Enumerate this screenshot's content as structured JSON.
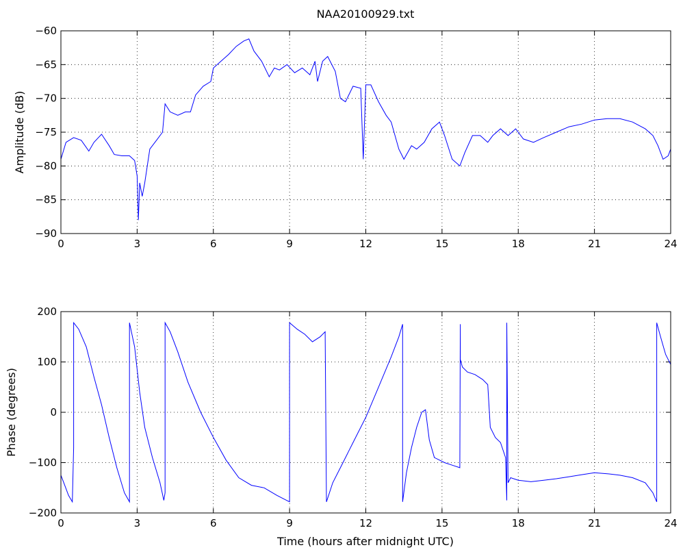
{
  "figure": {
    "title": "NAA20100929.txt",
    "xlabel": "Time (hours after midnight UTC)"
  },
  "chart_data": [
    {
      "type": "line",
      "title": "NAA20100929.txt",
      "xlabel": "",
      "ylabel": "Amplitude (dB)",
      "xlim": [
        0,
        24
      ],
      "ylim": [
        -90,
        -60
      ],
      "xticks": [
        0,
        3,
        6,
        9,
        12,
        15,
        18,
        21,
        24
      ],
      "yticks": [
        -90,
        -85,
        -80,
        -75,
        -70,
        -65,
        -60
      ],
      "grid": true,
      "series_color": "#0000ff",
      "x": [
        0,
        0.2,
        0.5,
        0.8,
        1.1,
        1.3,
        1.6,
        1.9,
        2.1,
        2.4,
        2.7,
        2.9,
        3.0,
        3.05,
        3.1,
        3.2,
        3.3,
        3.5,
        3.8,
        4.0,
        4.1,
        4.3,
        4.6,
        4.9,
        5.1,
        5.3,
        5.6,
        5.9,
        6.0,
        6.3,
        6.6,
        6.9,
        7.2,
        7.4,
        7.6,
        7.9,
        8.2,
        8.4,
        8.6,
        8.9,
        9.2,
        9.5,
        9.8,
        10.0,
        10.1,
        10.3,
        10.5,
        10.8,
        11.0,
        11.2,
        11.5,
        11.8,
        11.9,
        12.0,
        12.2,
        12.5,
        12.8,
        13.0,
        13.3,
        13.5,
        13.8,
        14.0,
        14.3,
        14.6,
        14.9,
        15.1,
        15.4,
        15.7,
        15.9,
        16.2,
        16.5,
        16.8,
        17.0,
        17.3,
        17.6,
        17.9,
        18.2,
        18.6,
        19.0,
        19.5,
        20.0,
        20.5,
        21.0,
        21.5,
        22.0,
        22.5,
        23.0,
        23.3,
        23.5,
        23.7,
        23.9,
        24.0
      ],
      "values": [
        -79,
        -76.5,
        -75.8,
        -76.2,
        -77.8,
        -76.5,
        -75.3,
        -77.0,
        -78.3,
        -78.5,
        -78.5,
        -79.2,
        -81.5,
        -88.0,
        -82.5,
        -84.5,
        -82.5,
        -77.5,
        -76.0,
        -75.0,
        -70.8,
        -72.0,
        -72.5,
        -72.0,
        -72.0,
        -69.5,
        -68.2,
        -67.5,
        -65.5,
        -64.5,
        -63.5,
        -62.3,
        -61.5,
        -61.2,
        -63.0,
        -64.5,
        -66.8,
        -65.5,
        -65.8,
        -65.0,
        -66.2,
        -65.5,
        -66.5,
        -64.5,
        -67.5,
        -64.5,
        -63.8,
        -66.0,
        -70.0,
        -70.5,
        -68.2,
        -68.5,
        -79.0,
        -68.0,
        -68.0,
        -70.5,
        -72.5,
        -73.5,
        -77.5,
        -79.0,
        -77.0,
        -77.5,
        -76.5,
        -74.5,
        -73.5,
        -75.5,
        -79.0,
        -80.0,
        -78.0,
        -75.5,
        -75.5,
        -76.5,
        -75.5,
        -74.5,
        -75.5,
        -74.5,
        -76.0,
        -76.5,
        -75.8,
        -75.0,
        -74.2,
        -73.8,
        -73.2,
        -73.0,
        -73.0,
        -73.5,
        -74.5,
        -75.5,
        -77.0,
        -79.0,
        -78.5,
        -77.5
      ]
    },
    {
      "type": "line",
      "title": "",
      "xlabel": "Time (hours after midnight UTC)",
      "ylabel": "Phase (degrees)",
      "xlim": [
        0,
        24
      ],
      "ylim": [
        -200,
        200
      ],
      "xticks": [
        0,
        3,
        6,
        9,
        12,
        15,
        18,
        21,
        24
      ],
      "yticks": [
        -200,
        -100,
        0,
        100,
        200
      ],
      "grid": true,
      "series_color": "#0000ff",
      "x": [
        0,
        0.15,
        0.3,
        0.45,
        0.5,
        0.5,
        0.7,
        1.0,
        1.3,
        1.6,
        1.9,
        2.2,
        2.5,
        2.7,
        2.7,
        2.9,
        3.1,
        3.3,
        3.6,
        3.9,
        4.05,
        4.1,
        4.1,
        4.3,
        4.6,
        5.0,
        5.5,
        6.0,
        6.5,
        7.0,
        7.5,
        8.0,
        8.5,
        9.0,
        9.0,
        9.3,
        9.6,
        9.9,
        10.2,
        10.4,
        10.45,
        10.45,
        10.7,
        11.0,
        11.5,
        12.0,
        12.5,
        13.0,
        13.3,
        13.45,
        13.45,
        13.6,
        13.8,
        14.0,
        14.2,
        14.35,
        14.5,
        14.7,
        14.9,
        15.1,
        15.4,
        15.7,
        15.72,
        15.72,
        15.8,
        16.0,
        16.3,
        16.6,
        16.8,
        16.9,
        17.1,
        17.3,
        17.5,
        17.55,
        17.55,
        17.6,
        17.7,
        18.0,
        18.5,
        19.0,
        19.5,
        20.0,
        20.5,
        21.0,
        21.5,
        22.0,
        22.5,
        23.0,
        23.3,
        23.45,
        23.45,
        23.6,
        23.8,
        24.0
      ],
      "values": [
        -125,
        -145,
        -165,
        -178,
        -70,
        178,
        165,
        130,
        70,
        15,
        -50,
        -110,
        -160,
        -178,
        178,
        130,
        40,
        -30,
        -90,
        -140,
        -175,
        -160,
        178,
        160,
        120,
        60,
        0,
        -50,
        -95,
        -130,
        -145,
        -150,
        -165,
        -178,
        178,
        165,
        155,
        140,
        150,
        160,
        -178,
        -178,
        -140,
        -110,
        -60,
        -10,
        50,
        110,
        150,
        175,
        -178,
        -120,
        -70,
        -30,
        0,
        5,
        -55,
        -90,
        -95,
        -100,
        -105,
        -110,
        175,
        105,
        90,
        80,
        75,
        65,
        55,
        -30,
        -50,
        -60,
        -90,
        -175,
        178,
        -140,
        -130,
        -135,
        -138,
        -135,
        -132,
        -128,
        -124,
        -120,
        -122,
        -125,
        -130,
        -140,
        -160,
        -178,
        178,
        150,
        115,
        95
      ]
    }
  ]
}
